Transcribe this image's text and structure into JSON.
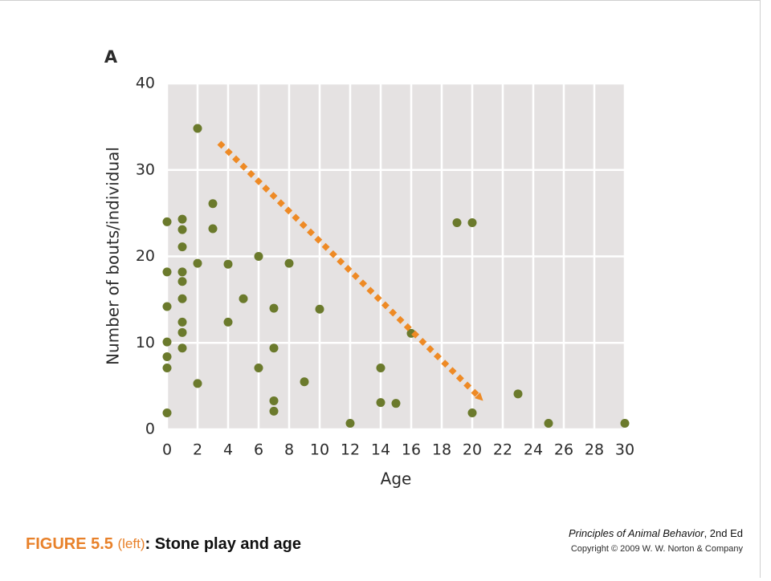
{
  "chart_data": {
    "type": "scatter",
    "title": "A",
    "xlabel": "Age",
    "ylabel": "Number of bouts/individual",
    "x": [
      0,
      0,
      0,
      0,
      0,
      0,
      0,
      1,
      1,
      1,
      1,
      1,
      1,
      1,
      1,
      1,
      2,
      2,
      2,
      3,
      3,
      4,
      4,
      5,
      6,
      6,
      7,
      7,
      7,
      7,
      8,
      9,
      10,
      12,
      14,
      14,
      15,
      16,
      19,
      20,
      20,
      23,
      25,
      30
    ],
    "values": [
      24,
      18.2,
      14.2,
      10.1,
      8.4,
      7.1,
      1.9,
      24.3,
      23.1,
      21.1,
      18.2,
      17.1,
      15.1,
      12.4,
      11.2,
      9.4,
      34.8,
      19.2,
      5.3,
      26.1,
      23.2,
      19.1,
      12.4,
      15.1,
      20,
      7.1,
      14,
      9.4,
      3.3,
      2.1,
      19.2,
      5.5,
      13.9,
      0.7,
      7.1,
      3.1,
      3,
      11.1,
      23.9,
      23.9,
      1.9,
      4.1,
      0.7,
      0.7
    ],
    "color": "#6b7a2c",
    "xlim": [
      0,
      30
    ],
    "xticks": [
      0,
      2,
      4,
      6,
      8,
      10,
      12,
      14,
      16,
      18,
      20,
      22,
      24,
      26,
      28,
      30
    ],
    "ylim": [
      0,
      40
    ],
    "yticks": [
      0,
      10,
      20,
      30,
      40
    ],
    "grid": true
  },
  "caption": {
    "figure": "FIGURE 5.5",
    "part": "(left)",
    "title": ": Stone play and age"
  },
  "credits": {
    "book": "Principles of Animal Behavior",
    "edition": ", 2nd Ed",
    "copyright": "Copyright © 2009 W. W. Norton & Company"
  }
}
